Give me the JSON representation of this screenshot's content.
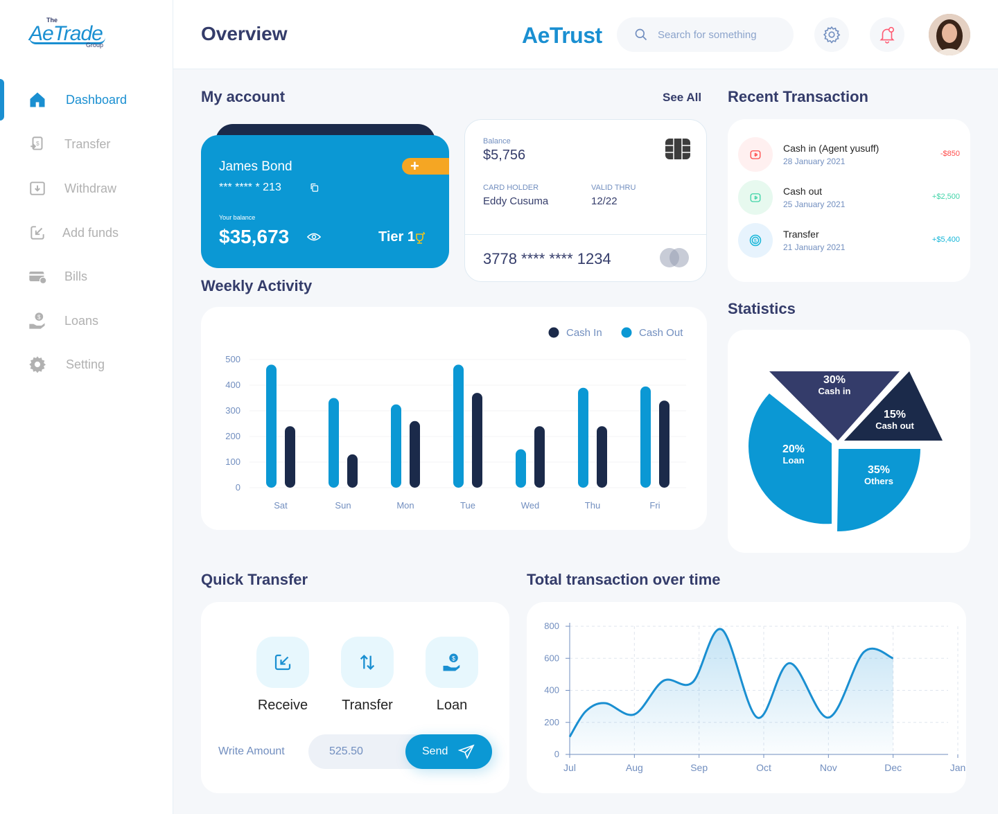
{
  "logo": {
    "the": "The",
    "name": "AeTrade",
    "group": "Group"
  },
  "sidebar": {
    "items": [
      {
        "label": "Dashboard",
        "icon": "home-icon"
      },
      {
        "label": "Transfer",
        "icon": "transfer-icon"
      },
      {
        "label": "Withdraw",
        "icon": "withdraw-icon"
      },
      {
        "label": "Add funds",
        "icon": "add-funds-icon"
      },
      {
        "label": "Bills",
        "icon": "bills-icon"
      },
      {
        "label": "Loans",
        "icon": "loans-icon"
      },
      {
        "label": "Setting",
        "icon": "gear-icon"
      }
    ]
  },
  "header": {
    "title": "Overview",
    "brand": "AeTrust",
    "search_placeholder": "Search for something"
  },
  "my_account": {
    "title": "My account",
    "see_all": "See All",
    "card": {
      "holder": "James Bond",
      "number": "*** **** * 213",
      "balance_label": "Your balance",
      "balance": "$35,673",
      "tier": "Tier 1"
    },
    "balance_card": {
      "balance_label": "Balance",
      "balance": "$5,756",
      "holder_label": "CARD HOLDER",
      "holder": "Eddy Cusuma",
      "valid_label": "VALID THRU",
      "valid": "12/22",
      "number": "3778 **** **** 1234"
    }
  },
  "recent": {
    "title": "Recent Transaction",
    "items": [
      {
        "title": "Cash in (Agent yusuff)",
        "date": "28 January 2021",
        "amount": "-$850",
        "color": "#ff4b4a",
        "bg": "#fff0f0"
      },
      {
        "title": "Cash out",
        "date": "25 January 2021",
        "amount": "+$2,500",
        "color": "#41d4a8",
        "bg": "#e7f9ef"
      },
      {
        "title": "Transfer",
        "date": "21 January 2021",
        "amount": "+$5,400",
        "color": "#16b6d8",
        "bg": "#e7f3fd"
      }
    ]
  },
  "weekly": {
    "title": "Weekly Activity"
  },
  "statistics": {
    "title": "Statistics",
    "slices": [
      {
        "pct": "30%",
        "label": "Cash in",
        "value": 30,
        "color": "#343c6a"
      },
      {
        "pct": "15%",
        "label": "Cash out",
        "value": 15,
        "color": "#1b2a4a"
      },
      {
        "pct": "35%",
        "label": "Others",
        "value": 35,
        "color": "#0b98d4"
      },
      {
        "pct": "20%",
        "label": "Loan",
        "value": 20,
        "color": "#0b98d4"
      }
    ]
  },
  "quick_transfer": {
    "title": "Quick Transfer",
    "actions": [
      {
        "label": "Receive"
      },
      {
        "label": "Transfer"
      },
      {
        "label": "Loan"
      }
    ],
    "amount_label": "Write Amount",
    "amount_value": "525.50",
    "send": "Send"
  },
  "total_tx": {
    "title": "Total transaction over time"
  },
  "chart_data": [
    {
      "type": "bar",
      "categories": [
        "Sat",
        "Sun",
        "Mon",
        "Tue",
        "Wed",
        "Thu",
        "Fri"
      ],
      "series": [
        {
          "name": "Cash In",
          "color": "#1b2a4a",
          "values": [
            240,
            130,
            260,
            370,
            240,
            240,
            340
          ]
        },
        {
          "name": "Cash Out",
          "color": "#0b98d4",
          "values": [
            480,
            350,
            325,
            480,
            150,
            390,
            395
          ]
        }
      ],
      "yticks": [
        0,
        100,
        200,
        300,
        400,
        500
      ],
      "ylim": [
        0,
        500
      ],
      "legend": "top-right"
    },
    {
      "type": "area",
      "x": [
        "Jul",
        "Aug",
        "Sep",
        "Oct",
        "Nov",
        "Dec",
        "Jan"
      ],
      "points": [
        [
          0,
          110
        ],
        [
          0.25,
          270
        ],
        [
          0.55,
          320
        ],
        [
          1.0,
          250
        ],
        [
          1.45,
          460
        ],
        [
          1.9,
          450
        ],
        [
          2.35,
          780
        ],
        [
          2.9,
          230
        ],
        [
          3.4,
          570
        ],
        [
          4.0,
          230
        ],
        [
          4.55,
          640
        ],
        [
          5.0,
          600
        ]
      ],
      "yticks": [
        0,
        200,
        400,
        600,
        800
      ],
      "ylim": [
        0,
        800
      ],
      "grid": true
    }
  ]
}
